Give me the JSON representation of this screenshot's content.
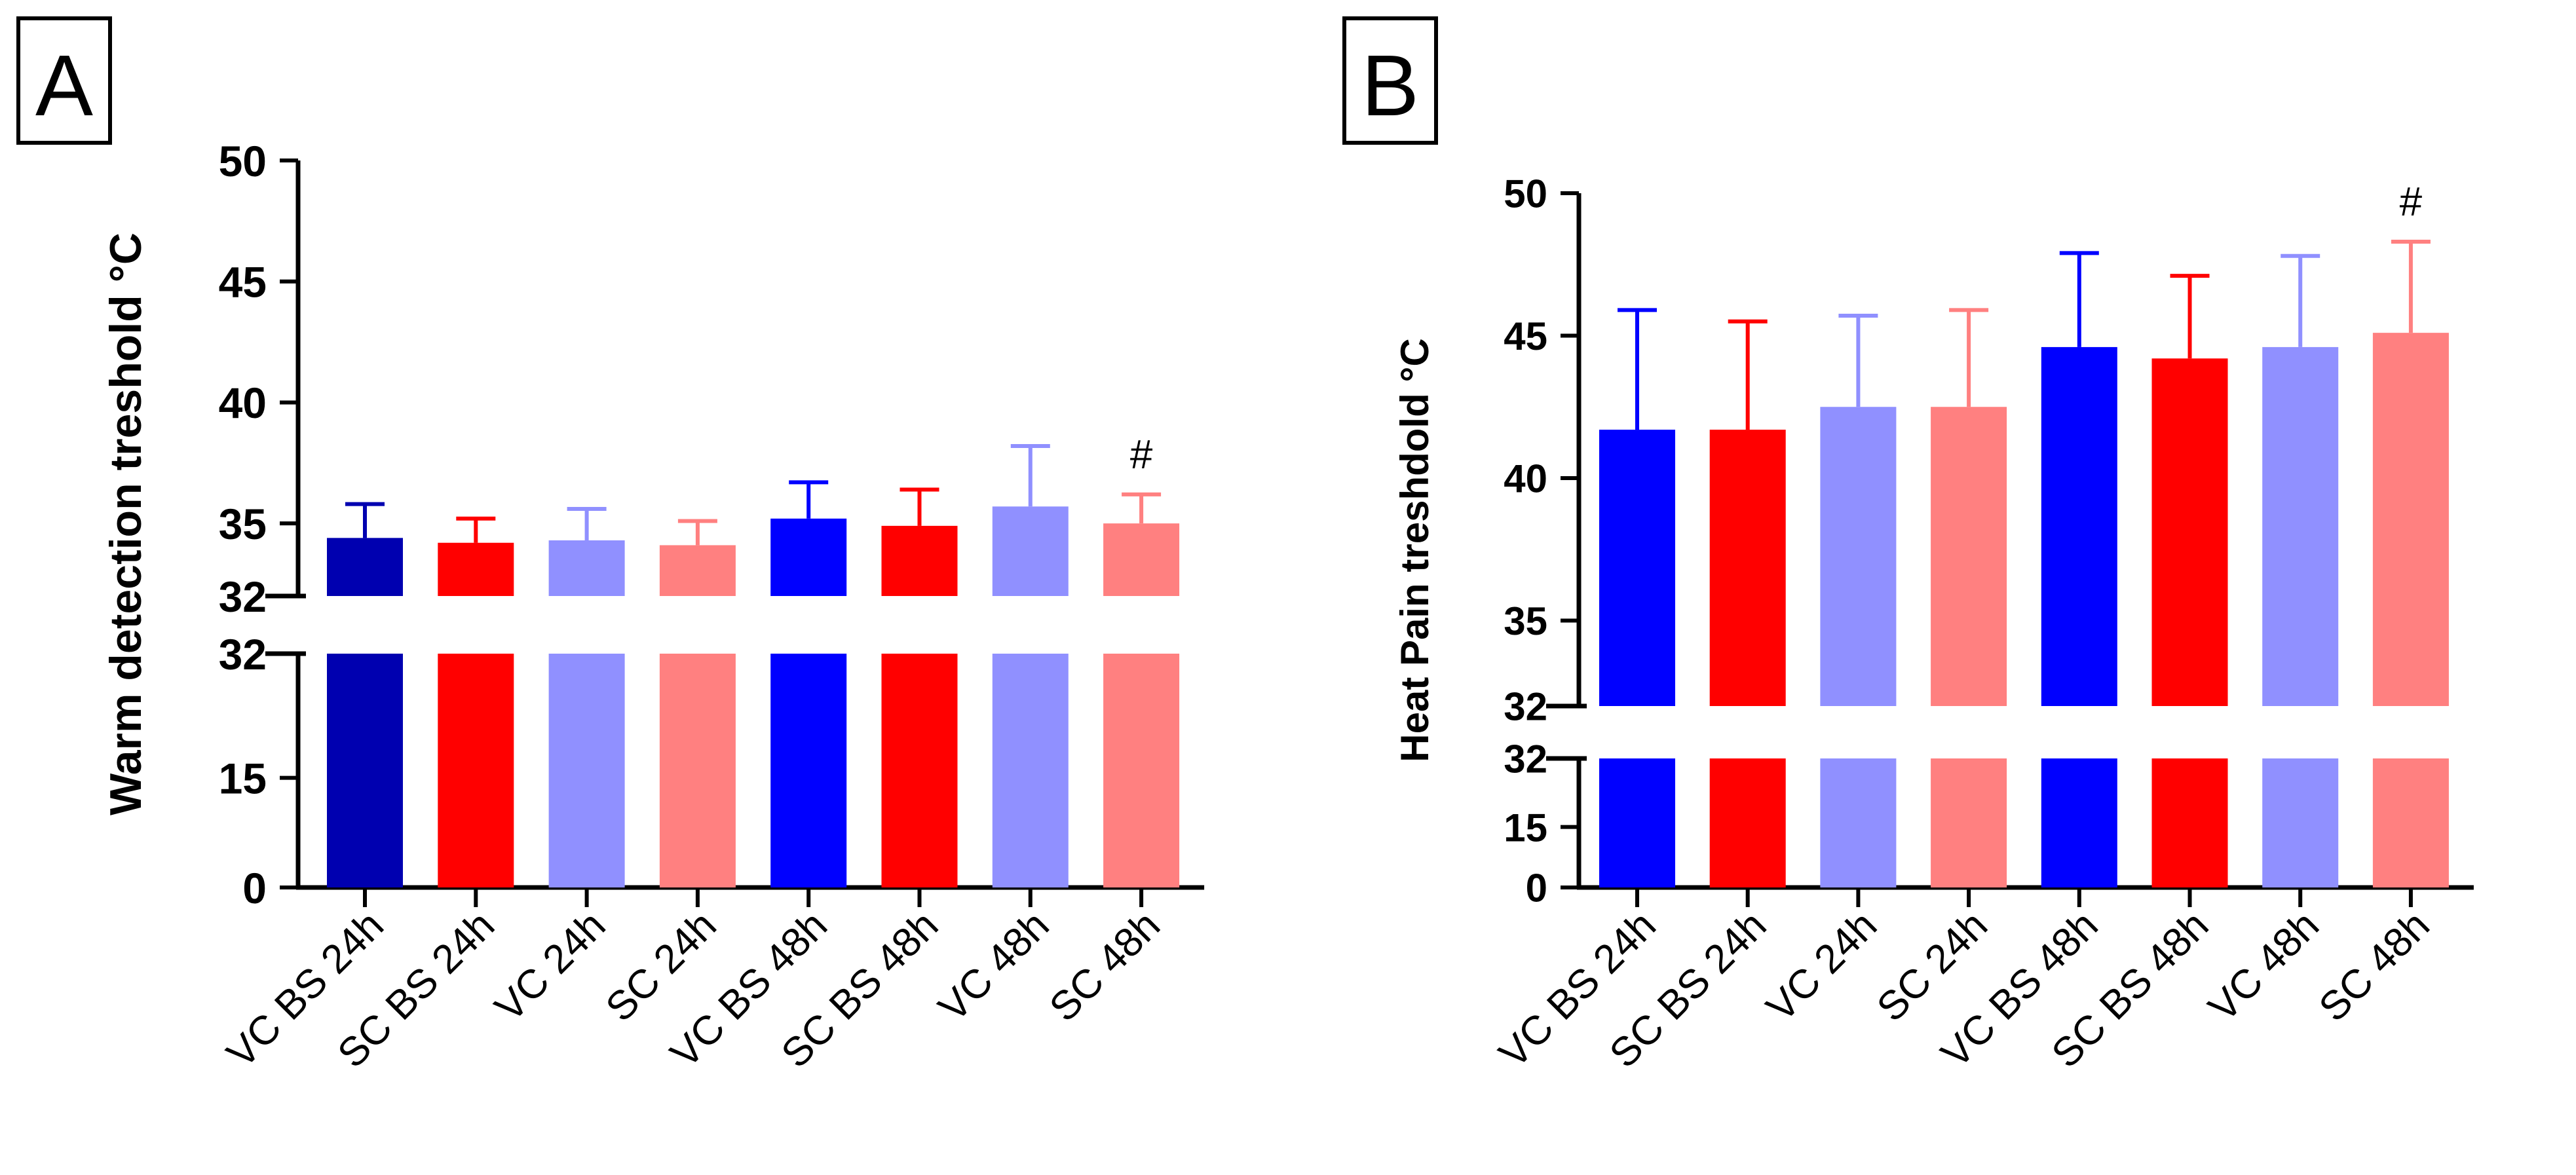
{
  "panels": [
    {
      "label": "A",
      "chart_data": {
        "type": "bar",
        "categories": [
          "VC BS 24h",
          "SC BS 24h",
          "VC 24h",
          "SC 24h",
          "VC BS 48h",
          "SC BS 48h",
          "VC 48h",
          "SC 48h"
        ],
        "values": [
          34.4,
          34.2,
          34.3,
          34.1,
          35.2,
          34.9,
          35.7,
          35.0
        ],
        "errors": [
          1.4,
          1.0,
          1.3,
          1.0,
          1.5,
          1.5,
          2.5,
          1.2
        ],
        "colors": [
          "#0000b0",
          "#ff0000",
          "#9090ff",
          "#ff8080",
          "#0000ff",
          "#ff0000",
          "#9090ff",
          "#ff8080"
        ],
        "ylabel": "Warm detection treshold °C",
        "axis_break": true,
        "upper_segment": {
          "ylim": [
            32,
            50
          ],
          "ticks": [
            "50",
            "45",
            "40",
            "35",
            "32"
          ]
        },
        "lower_segment": {
          "ylim": [
            0,
            32
          ],
          "ticks": [
            "32",
            "15",
            "0"
          ]
        },
        "annotations": [
          {
            "category": "SC 48h",
            "text": "#"
          }
        ],
        "grid": false,
        "legend": "none"
      }
    },
    {
      "label": "B",
      "chart_data": {
        "type": "bar",
        "categories": [
          "VC BS 24h",
          "SC BS 24h",
          "VC 24h",
          "SC 24h",
          "VC BS 48h",
          "SC BS 48h",
          "VC 48h",
          "SC 48h"
        ],
        "values": [
          41.7,
          41.7,
          42.5,
          42.5,
          44.6,
          44.2,
          44.6,
          45.1
        ],
        "errors": [
          4.2,
          3.8,
          3.2,
          3.4,
          3.3,
          2.9,
          3.2,
          3.2
        ],
        "colors": [
          "#0000ff",
          "#ff0000",
          "#9090ff",
          "#ff8080",
          "#0000ff",
          "#ff0000",
          "#9090ff",
          "#ff8080"
        ],
        "ylabel": "Heat Pain treshdold °C",
        "axis_break": true,
        "upper_segment": {
          "ylim": [
            32,
            50
          ],
          "ticks": [
            "50",
            "45",
            "40",
            "35",
            "32"
          ]
        },
        "lower_segment": {
          "ylim": [
            0,
            32
          ],
          "ticks": [
            "32",
            "15",
            "0"
          ]
        },
        "annotations": [
          {
            "category": "SC 48h",
            "text": "#"
          }
        ],
        "grid": false,
        "legend": "none"
      }
    }
  ]
}
